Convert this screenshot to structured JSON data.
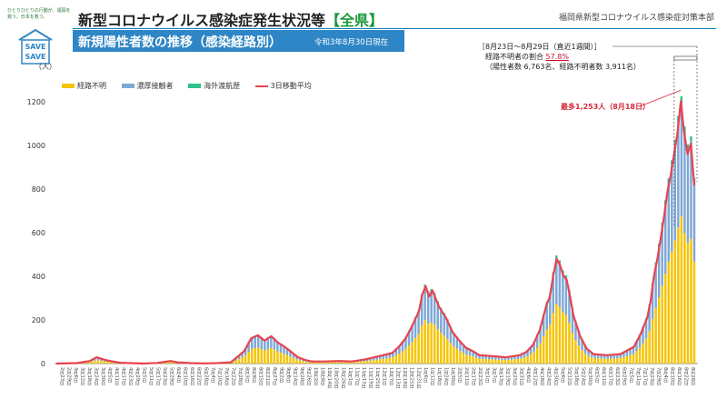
{
  "header": {
    "slogan": "ひとりひとりの行動が、福岡を救う。日本を救う。",
    "save_line1": "SAVE",
    "save_line2": "SAVE",
    "title_main": "新型コロナウイルス感染症発生状況等",
    "title_accent": "【全県】",
    "org": "福岡県新型コロナウイルス感染症対策本部",
    "subtitle": "新規陽性者数の推移（感染経路別）",
    "subtitle_date": "令和3年8月30日現在"
  },
  "annotation": {
    "line1": "［8月23日～8月29日（直近1週間）］",
    "line2_prefix": "経路不明者の割合",
    "line2_value": "57.8%",
    "line3": "（陽性者数 6,763名、経路不明者数 3,911名）",
    "peak_label": "最多1,253人（8月18日）"
  },
  "colors": {
    "unknown": "#f5c400",
    "close_contact": "#7ea7d6",
    "overseas": "#2fc28a",
    "moving_avg": "#e8434f",
    "header_band": "#2f86c6",
    "accent_green": "#1a9a3a"
  },
  "chart_data": {
    "type": "bar",
    "stacked": true,
    "unit_label": "（人）",
    "ylim": [
      0,
      1250
    ],
    "yticks": [
      0,
      200,
      400,
      600,
      800,
      1000,
      1200
    ],
    "grid": false,
    "legend_position": "top-left",
    "series": [
      {
        "name": "経路不明",
        "kind": "bar",
        "color": "#f5c400"
      },
      {
        "name": "濃厚接触者",
        "kind": "bar",
        "color": "#7ea7d6"
      },
      {
        "name": "海外渡航歴",
        "kind": "bar",
        "color": "#2fc28a"
      },
      {
        "name": "3日移動平均",
        "kind": "line",
        "color": "#e8434f"
      }
    ],
    "totals_approx": [
      [
        0,
        0
      ],
      [
        6,
        2
      ],
      [
        10,
        12
      ],
      [
        12,
        30
      ],
      [
        14,
        20
      ],
      [
        16,
        12
      ],
      [
        19,
        4
      ],
      [
        22,
        2
      ],
      [
        26,
        0
      ],
      [
        30,
        3
      ],
      [
        34,
        12
      ],
      [
        36,
        6
      ],
      [
        40,
        2
      ],
      [
        44,
        1
      ],
      [
        48,
        2
      ],
      [
        52,
        6
      ],
      [
        56,
        60
      ],
      [
        58,
        120
      ],
      [
        60,
        135
      ],
      [
        62,
        110
      ],
      [
        64,
        130
      ],
      [
        66,
        100
      ],
      [
        68,
        80
      ],
      [
        70,
        55
      ],
      [
        72,
        30
      ],
      [
        74,
        18
      ],
      [
        76,
        10
      ],
      [
        80,
        10
      ],
      [
        84,
        12
      ],
      [
        88,
        10
      ],
      [
        92,
        20
      ],
      [
        96,
        35
      ],
      [
        100,
        50
      ],
      [
        102,
        80
      ],
      [
        104,
        120
      ],
      [
        106,
        180
      ],
      [
        108,
        250
      ],
      [
        109,
        330
      ],
      [
        110,
        370
      ],
      [
        111,
        320
      ],
      [
        112,
        350
      ],
      [
        113,
        310
      ],
      [
        114,
        270
      ],
      [
        116,
        220
      ],
      [
        118,
        150
      ],
      [
        120,
        110
      ],
      [
        122,
        75
      ],
      [
        124,
        60
      ],
      [
        126,
        40
      ],
      [
        130,
        35
      ],
      [
        134,
        30
      ],
      [
        138,
        40
      ],
      [
        140,
        55
      ],
      [
        142,
        90
      ],
      [
        144,
        160
      ],
      [
        146,
        280
      ],
      [
        147,
        320
      ],
      [
        148,
        420
      ],
      [
        149,
        500
      ],
      [
        150,
        470
      ],
      [
        151,
        420
      ],
      [
        152,
        400
      ],
      [
        153,
        320
      ],
      [
        154,
        230
      ],
      [
        156,
        130
      ],
      [
        158,
        70
      ],
      [
        160,
        45
      ],
      [
        164,
        40
      ],
      [
        168,
        45
      ],
      [
        172,
        80
      ],
      [
        174,
        140
      ],
      [
        176,
        220
      ],
      [
        177,
        300
      ],
      [
        178,
        420
      ],
      [
        179,
        500
      ],
      [
        180,
        600
      ],
      [
        181,
        700
      ],
      [
        182,
        820
      ],
      [
        183,
        900
      ],
      [
        184,
        1000
      ],
      [
        185,
        1100
      ],
      [
        186,
        1253
      ],
      [
        187,
        1100
      ],
      [
        188,
        1000
      ],
      [
        189,
        1050
      ],
      [
        190,
        850
      ]
    ],
    "x_tick_labels": [
      "2月23日",
      "2月29日",
      "3月6日",
      "3月12日",
      "3月18日",
      "3月24日",
      "3月30日",
      "4月5日",
      "4月11日",
      "4月17日",
      "4月23日",
      "4月29日",
      "5月5日",
      "5月11日",
      "5月17日",
      "5月23日",
      "5月29日",
      "6月4日",
      "6月10日",
      "6月16日",
      "6月22日",
      "6月28日",
      "7月4日",
      "7月10日",
      "7月16日",
      "7月22日",
      "7月28日",
      "8月3日",
      "8月9日",
      "8月15日",
      "8月21日",
      "8月27日",
      "9月2日",
      "9月8日",
      "9月14日",
      "9月20日",
      "9月26日",
      "10月2日",
      "10月8日",
      "10月14日",
      "10月20日",
      "10月26日",
      "11月1日",
      "11月7日",
      "11月13日",
      "11月19日",
      "11月25日",
      "12月1日",
      "12月7日",
      "12月13日",
      "12月19日",
      "12月25日",
      "12月31日",
      "1月6日",
      "1月12日",
      "1月18日",
      "1月24日",
      "1月30日",
      "2月5日",
      "2月11日",
      "2月17日",
      "2月23日",
      "3月1日",
      "3月7日",
      "3月13日",
      "3月19日",
      "3月25日",
      "3月31日",
      "4月6日",
      "4月12日",
      "4月18日",
      "4月24日",
      "4月30日",
      "5月6日",
      "5月12日",
      "5月18日",
      "5月24日",
      "5月30日",
      "6月5日",
      "6月11日",
      "6月17日",
      "6月23日",
      "6月29日",
      "7月5日",
      "7月11日",
      "7月17日",
      "7月23日",
      "7月29日",
      "8月4日",
      "8月10日",
      "8月16日",
      "8月22日",
      "8月28日"
    ]
  }
}
